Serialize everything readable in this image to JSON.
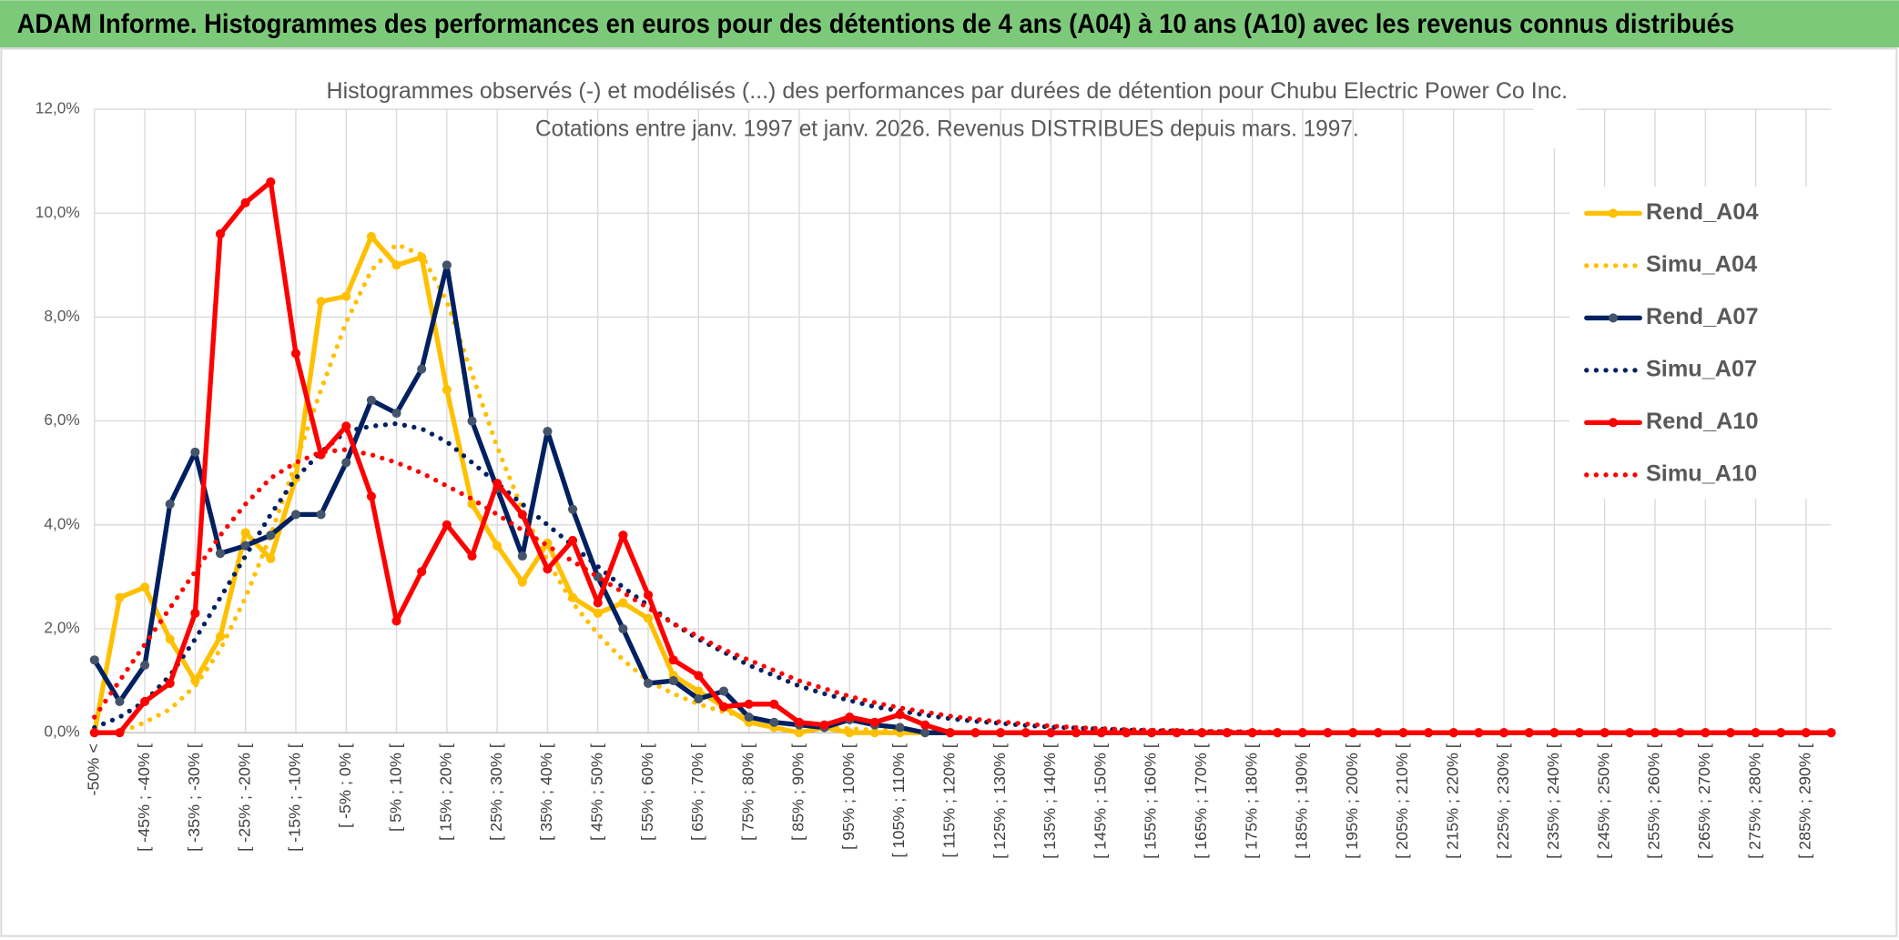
{
  "header": {
    "title": "ADAM Informe. Histogrammes des performances en euros pour des détentions de 4 ans (A04) à 10 ans (A10) avec les revenus connus distribués"
  },
  "chart_data": {
    "type": "line",
    "title": "Histogrammes observés (-) et modélisés (...) des performances par durées de détention pour Chubu Electric Power Co Inc.",
    "subtitle": "Cotations entre janv. 1997 et janv. 2026. Revenus DISTRIBUES depuis mars. 1997.",
    "categories": [
      "-50% <",
      null,
      "[ -45% ; -40% [",
      null,
      "[ -35% ; -30% [",
      null,
      "[ -25% ; -20% [",
      null,
      "[ -15% ; -10% [",
      null,
      "[ -5% ; 0% [",
      null,
      "[ 5% ; 10% [",
      null,
      "[ 15% ; 20% [",
      null,
      "[ 25% ; 30% [",
      null,
      "[ 35% ; 40% [",
      null,
      "[ 45% ; 50% [",
      null,
      "[ 55% ; 60% [",
      null,
      "[ 65% ; 70% [",
      null,
      "[ 75% ; 80% [",
      null,
      "[ 85% ; 90% [",
      null,
      "[ 95% ; 100% [",
      null,
      "[ 105% ; 110% [",
      null,
      "[ 115% ; 120% [",
      null,
      "[ 125% ; 130% [",
      null,
      "[ 135% ; 140% [",
      null,
      "[ 145% ; 150% [",
      null,
      "[ 155% ; 160% [",
      null,
      "[ 165% ; 170% [",
      null,
      "[ 175% ; 180% [",
      null,
      "[ 185% ; 190% [",
      null,
      "[ 195% ; 200% [",
      null,
      "[ 205% ; 210% [",
      null,
      "[ 215% ; 220% [",
      null,
      "[ 225% ; 230% [",
      null,
      "[ 235% ; 240% [",
      null,
      "[ 245% ; 250% [",
      null,
      "[ 255% ; 260% [",
      null,
      "[ 265% ; 270% [",
      null,
      "[ 275% ; 280% [",
      null,
      "[ 285% ; 290% [",
      null
    ],
    "series": [
      {
        "name": "Rend_A04",
        "color": "#ffc000",
        "style": "solid",
        "marker": true,
        "values": [
          0,
          2.6,
          2.8,
          1.8,
          1.0,
          1.85,
          3.85,
          3.35,
          4.9,
          8.3,
          8.4,
          9.55,
          9.0,
          9.15,
          6.6,
          4.4,
          3.6,
          2.9,
          3.65,
          2.6,
          2.3,
          2.5,
          2.2,
          1.1,
          0.8,
          0.5,
          0.2,
          0.1,
          0,
          0.1,
          0,
          0,
          0,
          0,
          0,
          0,
          0,
          0,
          0,
          0,
          0,
          0,
          0,
          0,
          0,
          0,
          0,
          0,
          0,
          0,
          0,
          0,
          0,
          0,
          0,
          0,
          0,
          0,
          0,
          0,
          0,
          0,
          0,
          0,
          0,
          0,
          0,
          0,
          0,
          0
        ]
      },
      {
        "name": "Simu_A04",
        "color": "#ffc000",
        "style": "dotted",
        "marker": false,
        "values": [
          0,
          0,
          0.2,
          0.45,
          0.9,
          1.6,
          2.6,
          3.8,
          5.2,
          6.6,
          7.9,
          8.9,
          9.4,
          9.2,
          8.3,
          6.9,
          5.5,
          4.3,
          3.3,
          2.5,
          1.9,
          1.4,
          1.0,
          0.75,
          0.55,
          0.4,
          0.3,
          0.2,
          0.15,
          0.1,
          0.08,
          0.05,
          0.03,
          0.02,
          0.01,
          0,
          0,
          0,
          0,
          0,
          0,
          0,
          0,
          0,
          0,
          0,
          0,
          0,
          0,
          0,
          0,
          0,
          0,
          0,
          0,
          0,
          0,
          0,
          0,
          0,
          0,
          0,
          0,
          0,
          0,
          0,
          0,
          0,
          0,
          0
        ]
      },
      {
        "name": "Rend_A07",
        "color": "#002060",
        "marker_color": "#44546a",
        "style": "solid",
        "marker": true,
        "values": [
          1.4,
          0.6,
          1.3,
          4.4,
          5.4,
          3.45,
          3.6,
          3.8,
          4.2,
          4.2,
          5.2,
          6.4,
          6.15,
          7.0,
          9.0,
          6.0,
          4.7,
          3.4,
          5.8,
          4.3,
          3.0,
          2.0,
          0.95,
          1.0,
          0.65,
          0.8,
          0.3,
          0.2,
          0.15,
          0.1,
          0.25,
          0.15,
          0.1,
          0,
          0,
          0,
          0,
          0,
          0,
          0,
          0,
          0,
          0,
          0,
          0,
          0,
          0,
          0,
          0,
          0,
          0,
          0,
          0,
          0,
          0,
          0,
          0,
          0,
          0,
          0,
          0,
          0,
          0,
          0,
          0,
          0,
          0,
          0,
          0,
          0
        ]
      },
      {
        "name": "Simu_A07",
        "color": "#002060",
        "style": "dotted",
        "marker": false,
        "values": [
          0.1,
          0.3,
          0.6,
          1.1,
          1.8,
          2.6,
          3.4,
          4.2,
          4.9,
          5.4,
          5.8,
          5.9,
          5.95,
          5.85,
          5.6,
          5.2,
          4.8,
          4.4,
          4.0,
          3.6,
          3.2,
          2.8,
          2.45,
          2.1,
          1.8,
          1.55,
          1.3,
          1.1,
          0.9,
          0.75,
          0.62,
          0.5,
          0.42,
          0.34,
          0.27,
          0.22,
          0.18,
          0.14,
          0.11,
          0.09,
          0.07,
          0.05,
          0.04,
          0.03,
          0.02,
          0.02,
          0.01,
          0,
          0,
          0,
          0,
          0,
          0,
          0,
          0,
          0,
          0,
          0,
          0,
          0,
          0,
          0,
          0,
          0,
          0,
          0,
          0,
          0,
          0,
          0
        ]
      },
      {
        "name": "Rend_A10",
        "color": "#ff0000",
        "style": "solid",
        "marker": true,
        "values": [
          0,
          0,
          0.6,
          0.95,
          2.3,
          9.6,
          10.2,
          10.6,
          7.3,
          5.35,
          5.9,
          4.55,
          2.15,
          3.1,
          4.0,
          3.4,
          4.8,
          4.2,
          3.15,
          3.7,
          2.5,
          3.8,
          2.65,
          1.4,
          1.1,
          0.5,
          0.55,
          0.55,
          0.2,
          0.15,
          0.3,
          0.2,
          0.35,
          0.15,
          0,
          0,
          0,
          0,
          0,
          0,
          0,
          0,
          0,
          0,
          0,
          0,
          0,
          0,
          0,
          0,
          0,
          0,
          0,
          0,
          0,
          0,
          0,
          0,
          0,
          0,
          0,
          0,
          0,
          0,
          0,
          0,
          0,
          0,
          0,
          0
        ]
      },
      {
        "name": "Simu_A10",
        "color": "#ff0000",
        "style": "dotted",
        "marker": false,
        "values": [
          0.3,
          1.0,
          1.7,
          2.4,
          3.1,
          3.8,
          4.4,
          4.9,
          5.2,
          5.4,
          5.45,
          5.35,
          5.2,
          5.0,
          4.75,
          4.5,
          4.2,
          3.9,
          3.6,
          3.3,
          3.0,
          2.7,
          2.4,
          2.1,
          1.85,
          1.6,
          1.4,
          1.2,
          1.0,
          0.85,
          0.7,
          0.58,
          0.48,
          0.4,
          0.32,
          0.26,
          0.21,
          0.17,
          0.13,
          0.1,
          0.08,
          0.06,
          0.05,
          0.04,
          0.03,
          0.02,
          0.02,
          0.01,
          0,
          0,
          0,
          0,
          0,
          0,
          0,
          0,
          0,
          0,
          0,
          0,
          0,
          0,
          0,
          0,
          0,
          0,
          0,
          0,
          0,
          0
        ]
      }
    ],
    "ylim": [
      0,
      12
    ],
    "yticks": [
      {
        "value": 0,
        "label": "0,0%"
      },
      {
        "value": 2,
        "label": "2,0%"
      },
      {
        "value": 4,
        "label": "4,0%"
      },
      {
        "value": 6,
        "label": "6,0%"
      },
      {
        "value": 8,
        "label": "8,0%"
      },
      {
        "value": 10,
        "label": "10,0%"
      },
      {
        "value": 12,
        "label": "12,0%"
      }
    ],
    "grid": true,
    "legend": "right"
  }
}
